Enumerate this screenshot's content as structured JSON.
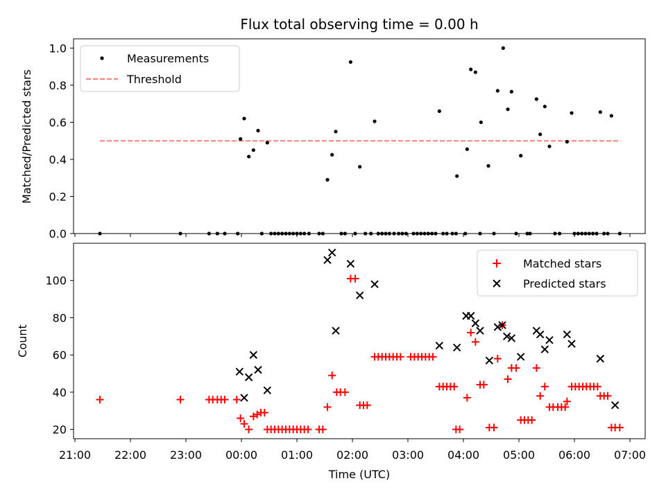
{
  "chart_data": [
    {
      "type": "scatter",
      "title": "Flux total observing time = 0.00 h",
      "xlabel": "",
      "ylabel": "Matched/Predicted stars",
      "ylim": [
        0,
        1.05
      ],
      "yticks": [
        "0.0",
        "0.2",
        "0.4",
        "0.6",
        "0.8",
        "1.0"
      ],
      "legend_position": "upper-left",
      "threshold": {
        "name": "Threshold",
        "value": 0.5,
        "x_range": [
          "21:27",
          "06:50"
        ],
        "color": "#ff7f7f",
        "style": "dashed"
      },
      "series": [
        {
          "name": "Measurements",
          "color": "#000000",
          "marker": "dot",
          "points": [
            [
              "21:27",
              0.0
            ],
            [
              "22:54",
              0.0
            ],
            [
              "23:25",
              0.0
            ],
            [
              "23:34",
              0.0
            ],
            [
              "23:42",
              0.0
            ],
            [
              "23:56",
              0.0
            ],
            [
              "23:59",
              0.51
            ],
            [
              "00:03",
              0.62
            ],
            [
              "00:08",
              0.415
            ],
            [
              "00:13",
              0.45
            ],
            [
              "00:18",
              0.555
            ],
            [
              "00:22",
              0.0
            ],
            [
              "00:28",
              0.49
            ],
            [
              "00:32",
              0.0
            ],
            [
              "00:36",
              0.0
            ],
            [
              "00:40",
              0.0
            ],
            [
              "00:44",
              0.0
            ],
            [
              "00:48",
              0.0
            ],
            [
              "00:52",
              0.0
            ],
            [
              "00:56",
              0.0
            ],
            [
              "01:00",
              0.0
            ],
            [
              "01:04",
              0.0
            ],
            [
              "01:08",
              0.0
            ],
            [
              "01:13",
              0.0
            ],
            [
              "01:24",
              0.0
            ],
            [
              "01:28",
              0.0
            ],
            [
              "01:33",
              0.29
            ],
            [
              "01:38",
              0.425
            ],
            [
              "01:42",
              0.55
            ],
            [
              "01:48",
              0.0
            ],
            [
              "01:52",
              0.0
            ],
            [
              "01:58",
              0.925
            ],
            [
              "02:03",
              0.0
            ],
            [
              "02:08",
              0.36
            ],
            [
              "02:14",
              0.0
            ],
            [
              "02:20",
              0.0
            ],
            [
              "02:24",
              0.605
            ],
            [
              "02:28",
              0.0
            ],
            [
              "02:32",
              0.0
            ],
            [
              "02:36",
              0.0
            ],
            [
              "02:40",
              0.0
            ],
            [
              "02:45",
              0.0
            ],
            [
              "02:50",
              0.0
            ],
            [
              "02:54",
              0.0
            ],
            [
              "02:58",
              0.0
            ],
            [
              "03:06",
              0.0
            ],
            [
              "03:10",
              0.0
            ],
            [
              "03:14",
              0.0
            ],
            [
              "03:18",
              0.0
            ],
            [
              "03:22",
              0.0
            ],
            [
              "03:26",
              0.0
            ],
            [
              "03:30",
              0.0
            ],
            [
              "03:34",
              0.66
            ],
            [
              "03:38",
              0.0
            ],
            [
              "03:42",
              0.0
            ],
            [
              "03:48",
              0.0
            ],
            [
              "03:52",
              0.0
            ],
            [
              "03:53",
              0.31
            ],
            [
              "04:02",
              0.0
            ],
            [
              "04:04",
              0.455
            ],
            [
              "04:08",
              0.885
            ],
            [
              "04:13",
              0.87
            ],
            [
              "04:18",
              0.0
            ],
            [
              "04:19",
              0.6
            ],
            [
              "04:27",
              0.365
            ],
            [
              "04:33",
              0.0
            ],
            [
              "04:37",
              0.77
            ],
            [
              "04:43",
              1.0
            ],
            [
              "04:48",
              0.67
            ],
            [
              "04:52",
              0.765
            ],
            [
              "04:57",
              0.0
            ],
            [
              "05:02",
              0.42
            ],
            [
              "05:09",
              0.0
            ],
            [
              "05:12",
              0.0
            ],
            [
              "05:19",
              0.725
            ],
            [
              "05:23",
              0.535
            ],
            [
              "05:28",
              0.685
            ],
            [
              "05:33",
              0.47
            ],
            [
              "05:39",
              0.0
            ],
            [
              "05:44",
              0.0
            ],
            [
              "05:52",
              0.495
            ],
            [
              "05:57",
              0.65
            ],
            [
              "06:00",
              0.0
            ],
            [
              "06:04",
              0.0
            ],
            [
              "06:08",
              0.0
            ],
            [
              "06:12",
              0.0
            ],
            [
              "06:16",
              0.0
            ],
            [
              "06:20",
              0.0
            ],
            [
              "06:24",
              0.0
            ],
            [
              "06:28",
              0.655
            ],
            [
              "06:32",
              0.0
            ],
            [
              "06:36",
              0.0
            ],
            [
              "06:40",
              0.635
            ],
            [
              "06:49",
              0.0
            ]
          ]
        }
      ]
    },
    {
      "type": "scatter",
      "title": "",
      "xlabel": "Time (UTC)",
      "ylabel": "Count",
      "ylim": [
        15,
        120
      ],
      "yticks": [
        "20",
        "40",
        "60",
        "80",
        "100"
      ],
      "xticks": [
        "21:00",
        "22:00",
        "23:00",
        "00:00",
        "01:00",
        "02:00",
        "03:00",
        "04:00",
        "05:00",
        "06:00",
        "07:00"
      ],
      "legend_position": "upper-right",
      "series": [
        {
          "name": "Matched stars",
          "color": "#ff0000",
          "marker": "plus",
          "points": [
            [
              "21:27",
              36
            ],
            [
              "22:54",
              36
            ],
            [
              "23:25",
              36
            ],
            [
              "23:29",
              36
            ],
            [
              "23:34",
              36
            ],
            [
              "23:38",
              36
            ],
            [
              "23:42",
              36
            ],
            [
              "23:55",
              36
            ],
            [
              "23:59",
              26
            ],
            [
              "00:03",
              23
            ],
            [
              "00:08",
              20
            ],
            [
              "00:13",
              27
            ],
            [
              "00:17",
              28
            ],
            [
              "00:21",
              29
            ],
            [
              "00:25",
              29
            ],
            [
              "00:28",
              20
            ],
            [
              "00:32",
              20
            ],
            [
              "00:36",
              20
            ],
            [
              "00:40",
              20
            ],
            [
              "00:44",
              20
            ],
            [
              "00:48",
              20
            ],
            [
              "00:52",
              20
            ],
            [
              "00:56",
              20
            ],
            [
              "01:00",
              20
            ],
            [
              "01:04",
              20
            ],
            [
              "01:08",
              20
            ],
            [
              "01:12",
              20
            ],
            [
              "01:24",
              20
            ],
            [
              "01:28",
              20
            ],
            [
              "01:33",
              32
            ],
            [
              "01:38",
              49
            ],
            [
              "01:43",
              40
            ],
            [
              "01:47",
              40
            ],
            [
              "01:52",
              40
            ],
            [
              "01:58",
              101
            ],
            [
              "02:03",
              101
            ],
            [
              "02:08",
              33
            ],
            [
              "02:12",
              33
            ],
            [
              "02:16",
              33
            ],
            [
              "02:24",
              59
            ],
            [
              "02:28",
              59
            ],
            [
              "02:32",
              59
            ],
            [
              "02:36",
              59
            ],
            [
              "02:40",
              59
            ],
            [
              "02:44",
              59
            ],
            [
              "02:48",
              59
            ],
            [
              "02:52",
              59
            ],
            [
              "03:03",
              59
            ],
            [
              "03:07",
              59
            ],
            [
              "03:11",
              59
            ],
            [
              "03:15",
              59
            ],
            [
              "03:19",
              59
            ],
            [
              "03:23",
              59
            ],
            [
              "03:27",
              59
            ],
            [
              "03:34",
              43
            ],
            [
              "03:38",
              43
            ],
            [
              "03:42",
              43
            ],
            [
              "03:46",
              43
            ],
            [
              "03:50",
              43
            ],
            [
              "03:52",
              20
            ],
            [
              "03:56",
              20
            ],
            [
              "04:04",
              37
            ],
            [
              "04:08",
              72
            ],
            [
              "04:13",
              67
            ],
            [
              "04:18",
              44
            ],
            [
              "04:22",
              44
            ],
            [
              "04:28",
              21
            ],
            [
              "04:33",
              21
            ],
            [
              "04:37",
              58
            ],
            [
              "04:42",
              76
            ],
            [
              "04:48",
              47
            ],
            [
              "04:52",
              53
            ],
            [
              "04:57",
              53
            ],
            [
              "05:02",
              25
            ],
            [
              "05:06",
              25
            ],
            [
              "05:10",
              25
            ],
            [
              "05:14",
              25
            ],
            [
              "05:19",
              53
            ],
            [
              "05:23",
              38
            ],
            [
              "05:28",
              43
            ],
            [
              "05:33",
              32
            ],
            [
              "05:37",
              32
            ],
            [
              "05:42",
              32
            ],
            [
              "05:46",
              32
            ],
            [
              "05:50",
              32
            ],
            [
              "05:52",
              35
            ],
            [
              "05:57",
              43
            ],
            [
              "06:01",
              43
            ],
            [
              "06:05",
              43
            ],
            [
              "06:09",
              43
            ],
            [
              "06:13",
              43
            ],
            [
              "06:17",
              43
            ],
            [
              "06:21",
              43
            ],
            [
              "06:25",
              43
            ],
            [
              "06:28",
              38
            ],
            [
              "06:32",
              38
            ],
            [
              "06:36",
              38
            ],
            [
              "06:40",
              21
            ],
            [
              "06:44",
              21
            ],
            [
              "06:49",
              21
            ]
          ]
        },
        {
          "name": "Predicted stars",
          "color": "#000000",
          "marker": "x",
          "points": [
            [
              "23:58",
              51
            ],
            [
              "00:03",
              37
            ],
            [
              "00:08",
              48
            ],
            [
              "00:13",
              60
            ],
            [
              "00:18",
              52
            ],
            [
              "00:28",
              41
            ],
            [
              "01:33",
              111
            ],
            [
              "01:38",
              115
            ],
            [
              "01:42",
              73
            ],
            [
              "01:58",
              109
            ],
            [
              "02:08",
              92
            ],
            [
              "02:24",
              98
            ],
            [
              "03:34",
              65
            ],
            [
              "03:53",
              64
            ],
            [
              "04:03",
              81
            ],
            [
              "04:08",
              81
            ],
            [
              "04:13",
              77
            ],
            [
              "04:18",
              73
            ],
            [
              "04:28",
              57
            ],
            [
              "04:37",
              75
            ],
            [
              "04:42",
              76
            ],
            [
              "04:47",
              70
            ],
            [
              "04:52",
              69
            ],
            [
              "05:02",
              59
            ],
            [
              "05:19",
              73
            ],
            [
              "05:23",
              71
            ],
            [
              "05:28",
              63
            ],
            [
              "05:33",
              68
            ],
            [
              "05:52",
              71
            ],
            [
              "05:57",
              66
            ],
            [
              "06:28",
              58
            ],
            [
              "06:44",
              33
            ]
          ]
        }
      ]
    }
  ]
}
